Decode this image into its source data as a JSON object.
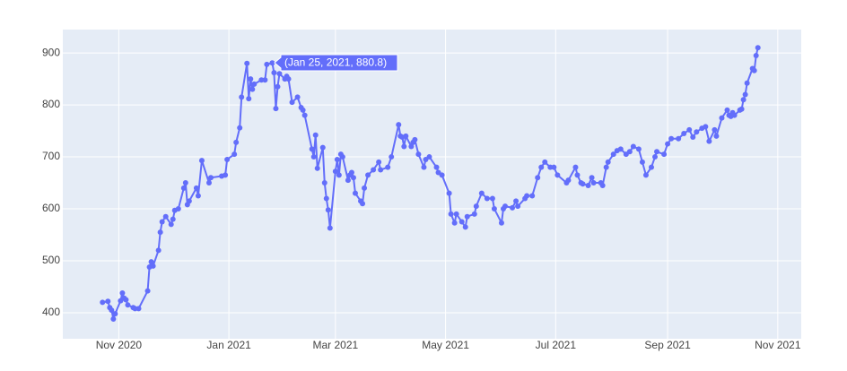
{
  "chart_data": {
    "type": "line",
    "color": "#636efa",
    "grid": true,
    "hover_label": "(Jan 25, 2021, 880.8)",
    "xlim": [
      "2020-10-01",
      "2021-11-14"
    ],
    "xticks": [
      {
        "value": "2020-11-01",
        "label": "Nov 2020"
      },
      {
        "value": "2021-01-01",
        "label": "Jan 2021"
      },
      {
        "value": "2021-03-01",
        "label": "Mar 2021"
      },
      {
        "value": "2021-05-01",
        "label": "May 2021"
      },
      {
        "value": "2021-07-01",
        "label": "Jul 2021"
      },
      {
        "value": "2021-09-01",
        "label": "Sep 2021"
      },
      {
        "value": "2021-11-01",
        "label": "Nov 2021"
      }
    ],
    "ylim": [
      350,
      945
    ],
    "yticks": [
      400,
      500,
      600,
      700,
      800,
      900
    ],
    "x": [
      "2020-10-23",
      "2020-10-26",
      "2020-10-27",
      "2020-10-28",
      "2020-10-29",
      "2020-10-30",
      "2020-11-02",
      "2020-11-03",
      "2020-11-04",
      "2020-11-05",
      "2020-11-06",
      "2020-11-09",
      "2020-11-10",
      "2020-11-12",
      "2020-11-17",
      "2020-11-18",
      "2020-11-19",
      "2020-11-20",
      "2020-11-23",
      "2020-11-24",
      "2020-11-25",
      "2020-11-27",
      "2020-11-30",
      "2020-12-01",
      "2020-12-02",
      "2020-12-04",
      "2020-12-07",
      "2020-12-08",
      "2020-12-09",
      "2020-12-10",
      "2020-12-14",
      "2020-12-15",
      "2020-12-17",
      "2020-12-21",
      "2020-12-22",
      "2020-12-28",
      "2020-12-30",
      "2020-12-31",
      "2021-01-04",
      "2021-01-05",
      "2021-01-07",
      "2021-01-08",
      "2021-01-11",
      "2021-01-12",
      "2021-01-13",
      "2021-01-14",
      "2021-01-15",
      "2021-01-19",
      "2021-01-21",
      "2021-01-22",
      "2021-01-25",
      "2021-01-26",
      "2021-01-27",
      "2021-01-28",
      "2021-01-29",
      "2021-02-01",
      "2021-02-02",
      "2021-02-03",
      "2021-02-05",
      "2021-02-08",
      "2021-02-10",
      "2021-02-11",
      "2021-02-12",
      "2021-02-16",
      "2021-02-17",
      "2021-02-18",
      "2021-02-19",
      "2021-02-22",
      "2021-02-23",
      "2021-02-24",
      "2021-02-25",
      "2021-02-26",
      "2021-03-01",
      "2021-03-02",
      "2021-03-03",
      "2021-03-04",
      "2021-03-05",
      "2021-03-08",
      "2021-03-09",
      "2021-03-10",
      "2021-03-11",
      "2021-03-12",
      "2021-03-15",
      "2021-03-16",
      "2021-03-17",
      "2021-03-19",
      "2021-03-22",
      "2021-03-25",
      "2021-03-26",
      "2021-03-30",
      "2021-04-01",
      "2021-04-05",
      "2021-04-06",
      "2021-04-07",
      "2021-04-08",
      "2021-04-09",
      "2021-04-12",
      "2021-04-13",
      "2021-04-14",
      "2021-04-16",
      "2021-04-19",
      "2021-04-20",
      "2021-04-22",
      "2021-04-26",
      "2021-04-27",
      "2021-04-29",
      "2021-05-03",
      "2021-05-04",
      "2021-05-06",
      "2021-05-07",
      "2021-05-10",
      "2021-05-12",
      "2021-05-13",
      "2021-05-17",
      "2021-05-18",
      "2021-05-21",
      "2021-05-24",
      "2021-05-27",
      "2021-05-28",
      "2021-06-01",
      "2021-06-02",
      "2021-06-03",
      "2021-06-07",
      "2021-06-09",
      "2021-06-10",
      "2021-06-14",
      "2021-06-15",
      "2021-06-18",
      "2021-06-21",
      "2021-06-23",
      "2021-06-25",
      "2021-06-28",
      "2021-06-30",
      "2021-07-02",
      "2021-07-07",
      "2021-07-08",
      "2021-07-12",
      "2021-07-13",
      "2021-07-15",
      "2021-07-16",
      "2021-07-19",
      "2021-07-21",
      "2021-07-22",
      "2021-07-26",
      "2021-07-27",
      "2021-07-29",
      "2021-07-30",
      "2021-08-02",
      "2021-08-04",
      "2021-08-06",
      "2021-08-09",
      "2021-08-11",
      "2021-08-13",
      "2021-08-16",
      "2021-08-18",
      "2021-08-20",
      "2021-08-23",
      "2021-08-25",
      "2021-08-26",
      "2021-08-30",
      "2021-09-01",
      "2021-09-03",
      "2021-09-07",
      "2021-09-10",
      "2021-09-13",
      "2021-09-15",
      "2021-09-17",
      "2021-09-20",
      "2021-09-22",
      "2021-09-24",
      "2021-09-27",
      "2021-09-28",
      "2021-10-01",
      "2021-10-04",
      "2021-10-05",
      "2021-10-06",
      "2021-10-07",
      "2021-10-08",
      "2021-10-11",
      "2021-10-12",
      "2021-10-13",
      "2021-10-14",
      "2021-10-15",
      "2021-10-18",
      "2021-10-19",
      "2021-10-20",
      "2021-10-21"
    ],
    "values": [
      420,
      422,
      410,
      405,
      388,
      398,
      423,
      438,
      428,
      425,
      415,
      410,
      408,
      408,
      442,
      488,
      498,
      490,
      520,
      555,
      575,
      585,
      570,
      580,
      597,
      600,
      640,
      650,
      608,
      615,
      640,
      625,
      693,
      650,
      660,
      663,
      665,
      695,
      705,
      728,
      756,
      815,
      880,
      812,
      850,
      830,
      840,
      848,
      848,
      878,
      880.8,
      862,
      793,
      835,
      860,
      850,
      855,
      850,
      805,
      815,
      795,
      790,
      780,
      715,
      700,
      742,
      678,
      718,
      650,
      620,
      598,
      563,
      672,
      695,
      665,
      705,
      700,
      655,
      665,
      670,
      660,
      630,
      615,
      610,
      640,
      665,
      675,
      690,
      675,
      680,
      700,
      762,
      740,
      738,
      720,
      740,
      720,
      728,
      733,
      705,
      680,
      695,
      700,
      680,
      670,
      665,
      630,
      590,
      573,
      590,
      575,
      565,
      585,
      590,
      605,
      630,
      620,
      620,
      600,
      573,
      600,
      605,
      602,
      615,
      605,
      620,
      625,
      625,
      660,
      680,
      690,
      680,
      680,
      665,
      650,
      655,
      680,
      665,
      650,
      648,
      645,
      660,
      650,
      650,
      645,
      680,
      690,
      705,
      712,
      715,
      705,
      710,
      720,
      715,
      690,
      665,
      680,
      700,
      710,
      705,
      725,
      735,
      735,
      745,
      752,
      738,
      748,
      755,
      758,
      730,
      752,
      740,
      775,
      790,
      780,
      778,
      785,
      780,
      790,
      792,
      810,
      820,
      842,
      870,
      866,
      895,
      910
    ]
  }
}
